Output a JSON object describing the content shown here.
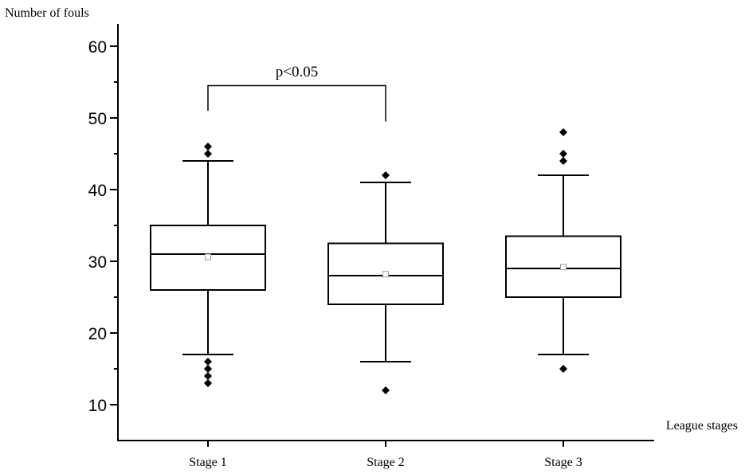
{
  "chart_data": {
    "type": "box",
    "ylabel": "Number of fouls",
    "xlabel": "League stages",
    "ylim": [
      5,
      65
    ],
    "yticks": [
      10,
      20,
      30,
      40,
      50,
      60
    ],
    "ytick_labels": [
      "10",
      "20",
      "30",
      "40",
      "50",
      "60"
    ],
    "categories": [
      "Stage 1",
      "Stage 2",
      "Stage 3"
    ],
    "boxes": [
      {
        "category": "Stage 1",
        "whisker_low": 17,
        "q1": 26,
        "median": 31,
        "q3": 35,
        "whisker_high": 44,
        "mean": 30.6,
        "outliers": [
          13,
          14,
          15,
          16,
          45,
          46
        ]
      },
      {
        "category": "Stage 2",
        "whisker_low": 16,
        "q1": 24,
        "median": 28,
        "q3": 32.5,
        "whisker_high": 41,
        "mean": 28.2,
        "outliers": [
          12,
          42
        ]
      },
      {
        "category": "Stage 3",
        "whisker_low": 17,
        "q1": 25,
        "median": 29,
        "q3": 33.5,
        "whisker_high": 42,
        "mean": 29.2,
        "outliers": [
          15,
          44,
          45,
          48
        ]
      }
    ],
    "annotation": {
      "text": "p<0.05",
      "from": "Stage 1",
      "to": "Stage 2",
      "bracket_y": 54.5,
      "left_drop_y": 51,
      "right_drop_y": 49.5
    },
    "colors": {
      "box_stroke": "#000000",
      "mean_marker": "#999999",
      "outlier": "#000000"
    }
  }
}
